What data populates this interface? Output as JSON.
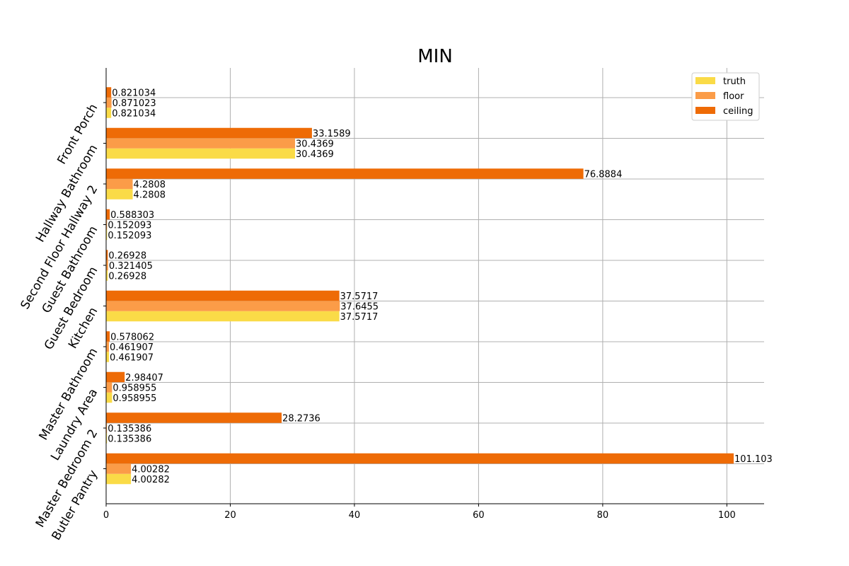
{
  "chart_data": {
    "type": "bar",
    "orientation": "horizontal",
    "title": "MIN",
    "xlabel": "",
    "ylabel": "",
    "xlim": [
      0,
      106
    ],
    "xticks": [
      0,
      20,
      40,
      60,
      80,
      100
    ],
    "grid": true,
    "legend": "top-right",
    "categories": [
      "Front Porch",
      "Hallway Bathroom",
      "Second Floor Hallway 2",
      "Guest Bathroom",
      "Guest Bedroom",
      "Kitchen",
      "Master Bathroom",
      "Laundry Area",
      "Master Bedroom 2",
      "Butler Pantry"
    ],
    "series": [
      {
        "name": "truth",
        "color": "#fadb47",
        "values": [
          0.821034,
          30.4369,
          4.2808,
          0.152093,
          0.26928,
          37.5717,
          0.461907,
          0.958955,
          0.135386,
          4.00282
        ],
        "labels": [
          "0.821034",
          "30.4369",
          "4.2808",
          "0.152093",
          "0.26928",
          "37.5717",
          "0.461907",
          "0.958955",
          "0.135386",
          "4.00282"
        ]
      },
      {
        "name": "floor",
        "color": "#fb9c48",
        "values": [
          0.871023,
          30.4369,
          4.2808,
          0.152093,
          0.321405,
          37.6455,
          0.461907,
          0.958955,
          0.135386,
          4.00282
        ],
        "labels": [
          "0.871023",
          "30.4369",
          "4.2808",
          "0.152093",
          "0.321405",
          "37.6455",
          "0.461907",
          "0.958955",
          "0.135386",
          "4.00282"
        ]
      },
      {
        "name": "ceiling",
        "color": "#ee6b06",
        "values": [
          0.821034,
          33.1589,
          76.8884,
          0.588303,
          0.26928,
          37.5717,
          0.578062,
          2.98407,
          28.2736,
          101.103
        ],
        "labels": [
          "0.821034",
          "33.1589",
          "76.8884",
          "0.588303",
          "0.26928",
          "37.5717",
          "0.578062",
          "2.98407",
          "28.2736",
          "101.103"
        ]
      }
    ]
  }
}
